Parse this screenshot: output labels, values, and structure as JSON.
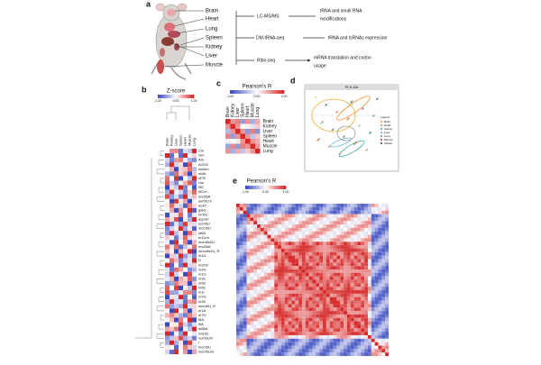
{
  "panels": {
    "a": "a",
    "b": "b",
    "c": "c",
    "d": "d",
    "e": "e"
  },
  "panel_a": {
    "organs": [
      "Brain",
      "Heart",
      "Lung",
      "Spleen",
      "Kidney",
      "Liver",
      "Muscle"
    ],
    "methods": [
      "LC-MS/MS",
      "DM-tRNA-seq",
      "Ribo-seq"
    ],
    "outputs": [
      [
        "tRNA and small RNA",
        "modifications"
      ],
      [
        "tRNA and tsRNAs expression"
      ],
      [
        "mRNA translation and codon",
        "usage"
      ]
    ]
  },
  "panel_b": {
    "title": "Z-score",
    "colorbar_ticks": [
      "-1.00",
      "0.00",
      "1.00"
    ],
    "columns": [
      "Brain",
      "Kidney",
      "Liver",
      "Spleen",
      "Heart",
      "Muscle",
      "Lung"
    ],
    "rows": [
      "Cm",
      "Gm",
      "Am",
      "m22G",
      "m6Am",
      "m6A",
      "cPΨ",
      "Um",
      "f5C",
      "f5Cm",
      "ms2i6A",
      "inm5Cm",
      "ac4C",
      "galQ",
      "hm5C",
      "acp3U",
      "ncm5U",
      "mcm5U",
      "ct6A",
      "m1Um",
      "mcm5s2U",
      "ms2t6A",
      "mnm5s2U_R",
      "m1A",
      "D",
      "m22G",
      "m2G",
      "m1G",
      "m3C",
      "m5U",
      "m5C",
      "m1I",
      "m7G",
      "m3C",
      "mcm5U_R",
      "m1A",
      "m7G",
      "t6A",
      "i6A",
      "m66A",
      "manQ",
      "ncm5Um",
      "I",
      "mcm5U",
      "mcm5Um"
    ]
  },
  "panel_c": {
    "title": "Pearson's R",
    "colorbar_ticks": [
      "-1.00",
      "0.00",
      "1.00"
    ],
    "labels": [
      "Brain",
      "Kidney",
      "Liver",
      "Spleen",
      "Heart",
      "Muscle",
      "Lung"
    ]
  },
  "panel_d": {
    "title": "PLS-DA",
    "legend_title": "Legend",
    "legend": [
      "Brain",
      "Heart",
      "Kidney",
      "Liver",
      "Lung",
      "Muscle",
      "Spleen"
    ]
  },
  "panel_e": {
    "title": "Pearson's R",
    "colorbar_ticks": [
      "-1.00",
      "0.00",
      "1.00"
    ]
  }
}
